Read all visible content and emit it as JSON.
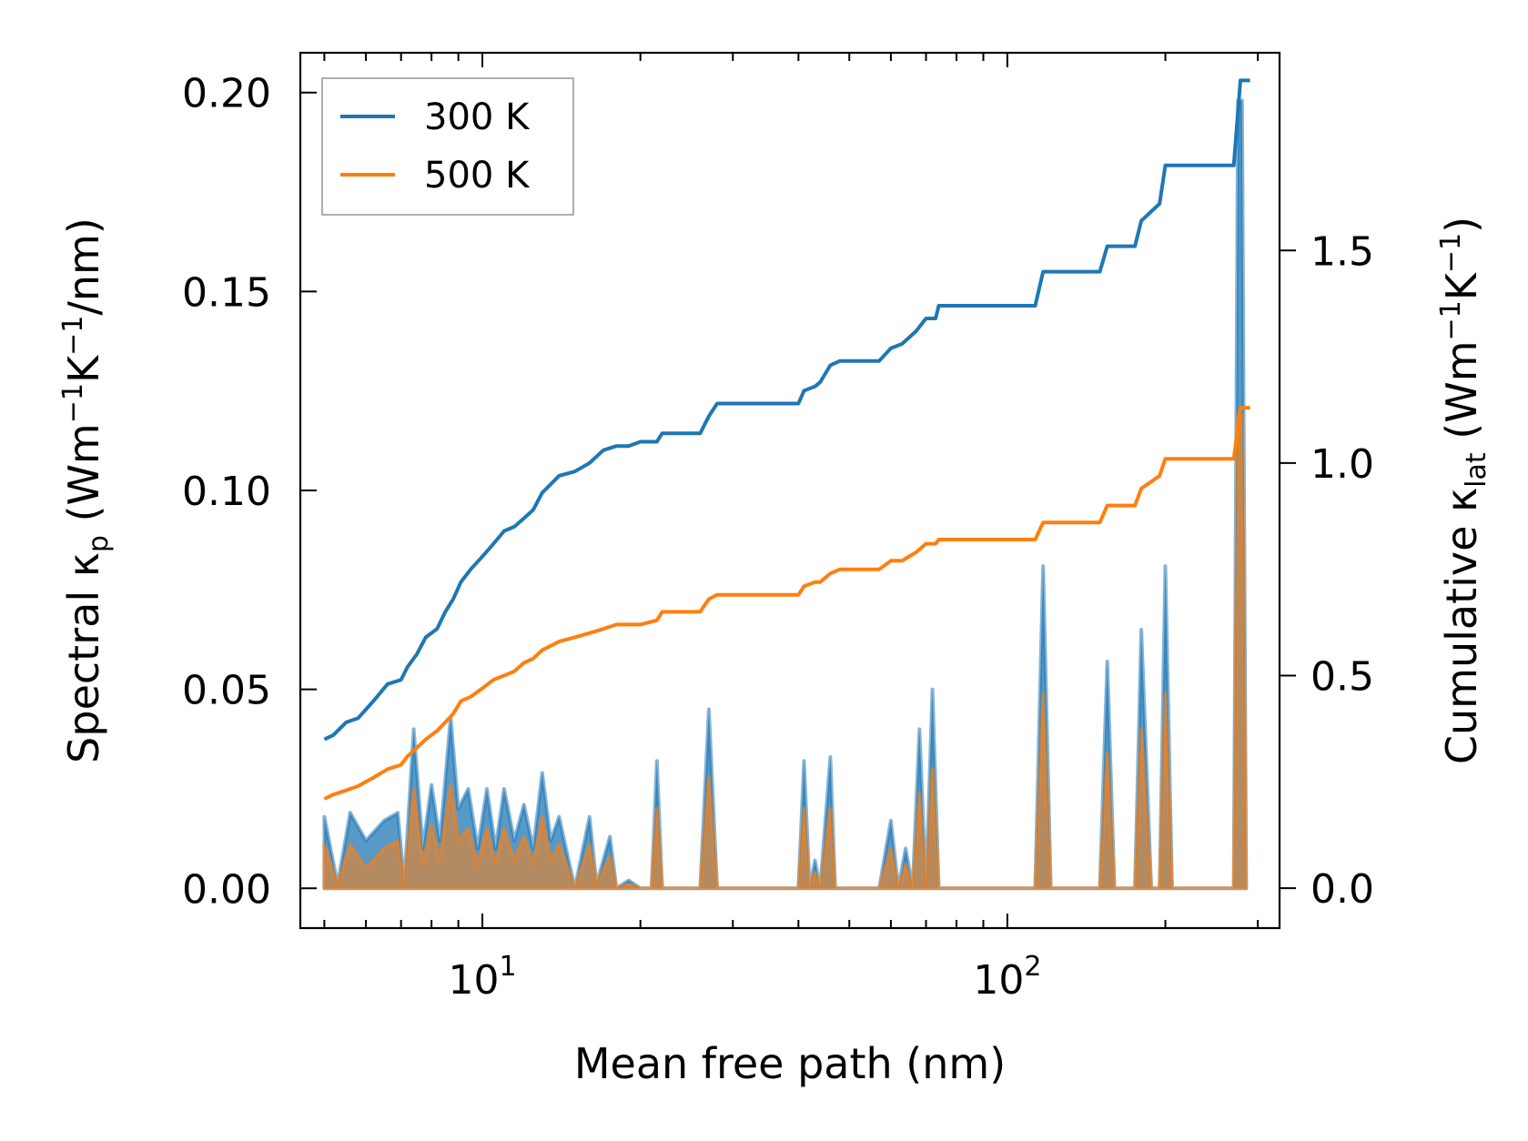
{
  "chart_data": {
    "type": "line",
    "title": "",
    "xlabel": "Mean free path (nm)",
    "ylabel_left": {
      "main": "Spectral κ",
      "sub": "p",
      "unit_parts": [
        " (Wm",
        "−1",
        "K",
        "−1",
        "/nm)"
      ]
    },
    "ylabel_right": {
      "main": "Cumulative κ",
      "sub": "lat",
      "unit_parts": [
        " (Wm",
        "−1",
        "K",
        "−1",
        ")"
      ]
    },
    "x_scale": "log",
    "xlim": [
      4.5,
      330
    ],
    "ylim_left": [
      -0.01,
      0.21
    ],
    "ylim_right": [
      -0.094,
      1.965
    ],
    "x_ticks": [
      {
        "value": 10,
        "base": "10",
        "exp": "1"
      },
      {
        "value": 100,
        "base": "10",
        "exp": "2"
      }
    ],
    "y_left_ticks": [
      "0.00",
      "0.05",
      "0.10",
      "0.15",
      "0.20"
    ],
    "y_right_ticks": [
      "0.0",
      "0.5",
      "1.0",
      "1.5"
    ],
    "grid": false,
    "legend": {
      "position": "top-left",
      "entries": [
        "300 K",
        "500 K"
      ]
    },
    "colors": {
      "300 K": "#1f77b4",
      "500 K": "#ff7f0e",
      "fill_300": "#1f77b4",
      "fill_500": "#ff7f0e"
    },
    "spectral_x": [
      5.0,
      5.3,
      5.6,
      6.0,
      6.5,
      6.9,
      7.1,
      7.4,
      7.7,
      8.0,
      8.3,
      8.7,
      9.0,
      9.4,
      9.8,
      10.2,
      10.6,
      11.0,
      11.5,
      12.0,
      12.5,
      13.0,
      13.5,
      14.0,
      15.0,
      16.0,
      16.5,
      17.5,
      18.0,
      19.0,
      20.0,
      21.0,
      21.5,
      22.0,
      26.0,
      27.0,
      28.0,
      40.0,
      41.0,
      42.0,
      43.0,
      44.0,
      46.0,
      47.0,
      49.0,
      57.0,
      60.0,
      62.0,
      64.0,
      66.0,
      68.0,
      70.0,
      72.0,
      74.0,
      76.0,
      113.0,
      117.0,
      121.0,
      150.0,
      155.0,
      160.0,
      175.0,
      180.0,
      188.0,
      195.0,
      200.0,
      206.0,
      270.0,
      275.0,
      280.0,
      285.0
    ],
    "spectral_300": [
      0.018,
      0.001,
      0.019,
      0.012,
      0.017,
      0.019,
      0.001,
      0.04,
      0.01,
      0.026,
      0.012,
      0.043,
      0.02,
      0.025,
      0.01,
      0.025,
      0.01,
      0.025,
      0.012,
      0.021,
      0.01,
      0.029,
      0.012,
      0.018,
      0.0,
      0.018,
      0.001,
      0.013,
      0.0,
      0.002,
      0.0,
      0.0,
      0.032,
      0.0,
      0.0,
      0.045,
      0.0,
      0.0,
      0.032,
      0.0,
      0.007,
      0.0,
      0.033,
      0.0,
      0.0,
      0.0,
      0.017,
      0.0,
      0.01,
      0.0,
      0.04,
      0.0,
      0.05,
      0.0,
      0.0,
      0.0,
      0.081,
      0.0,
      0.0,
      0.057,
      0.0,
      0.0,
      0.065,
      0.0,
      0.0,
      0.081,
      0.0,
      0.0,
      0.198,
      0.198,
      0.0
    ],
    "spectral_500": [
      0.011,
      0.001,
      0.011,
      0.005,
      0.01,
      0.012,
      0.001,
      0.025,
      0.006,
      0.016,
      0.007,
      0.026,
      0.012,
      0.015,
      0.006,
      0.015,
      0.006,
      0.015,
      0.007,
      0.013,
      0.006,
      0.018,
      0.007,
      0.011,
      0.0,
      0.011,
      0.001,
      0.008,
      0.0,
      0.001,
      0.0,
      0.0,
      0.02,
      0.0,
      0.0,
      0.028,
      0.0,
      0.0,
      0.02,
      0.0,
      0.004,
      0.0,
      0.02,
      0.0,
      0.0,
      0.0,
      0.01,
      0.0,
      0.006,
      0.0,
      0.024,
      0.0,
      0.03,
      0.0,
      0.0,
      0.0,
      0.049,
      0.0,
      0.0,
      0.034,
      0.0,
      0.0,
      0.04,
      0.0,
      0.0,
      0.049,
      0.0,
      0.0,
      0.119,
      0.119,
      0.0
    ],
    "cumulative_x": [
      5.0,
      5.2,
      5.5,
      5.8,
      6.2,
      6.6,
      7.0,
      7.2,
      7.5,
      7.8,
      8.2,
      8.5,
      8.8,
      9.1,
      9.5,
      10.0,
      10.5,
      11.0,
      11.5,
      12.0,
      12.5,
      13.0,
      13.5,
      14.0,
      15.0,
      16.0,
      17.0,
      18.0,
      19.0,
      20.0,
      21.5,
      22.0,
      26.0,
      27.0,
      28.0,
      40.0,
      41.0,
      43.0,
      44.0,
      46.0,
      48.0,
      57.0,
      60.0,
      63.0,
      67.0,
      70.0,
      73.0,
      74.0,
      113.0,
      117.0,
      150.0,
      155.0,
      175.0,
      180.0,
      195.0,
      200.0,
      270.0,
      278.0,
      290.0
    ],
    "cumulative_300": [
      0.35,
      0.36,
      0.39,
      0.4,
      0.44,
      0.48,
      0.49,
      0.52,
      0.55,
      0.59,
      0.61,
      0.65,
      0.68,
      0.72,
      0.75,
      0.78,
      0.81,
      0.84,
      0.85,
      0.87,
      0.89,
      0.93,
      0.95,
      0.97,
      0.98,
      1.0,
      1.03,
      1.04,
      1.04,
      1.05,
      1.05,
      1.07,
      1.07,
      1.11,
      1.14,
      1.14,
      1.17,
      1.18,
      1.19,
      1.23,
      1.24,
      1.24,
      1.27,
      1.28,
      1.31,
      1.34,
      1.34,
      1.37,
      1.37,
      1.45,
      1.45,
      1.51,
      1.51,
      1.57,
      1.61,
      1.7,
      1.7,
      1.9,
      1.9
    ],
    "cumulative_500": [
      0.21,
      0.22,
      0.23,
      0.24,
      0.26,
      0.28,
      0.29,
      0.31,
      0.33,
      0.35,
      0.37,
      0.39,
      0.41,
      0.44,
      0.45,
      0.47,
      0.49,
      0.5,
      0.51,
      0.53,
      0.54,
      0.56,
      0.57,
      0.58,
      0.59,
      0.6,
      0.61,
      0.62,
      0.62,
      0.62,
      0.63,
      0.65,
      0.65,
      0.68,
      0.69,
      0.69,
      0.71,
      0.72,
      0.72,
      0.74,
      0.75,
      0.75,
      0.77,
      0.77,
      0.79,
      0.81,
      0.81,
      0.82,
      0.82,
      0.86,
      0.86,
      0.9,
      0.9,
      0.94,
      0.97,
      1.01,
      1.01,
      1.13,
      1.13
    ]
  }
}
